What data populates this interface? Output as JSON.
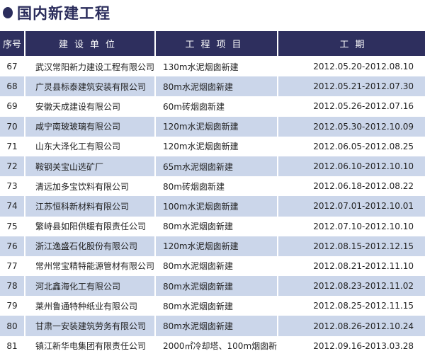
{
  "title": "国内新建工程",
  "colors": {
    "header_bg": "#2e2f5e",
    "row_alt_bg": "#cbd6ea",
    "title": "#2b2d5c"
  },
  "headers": [
    "序号",
    "建设单位",
    "工程项目",
    "工期"
  ],
  "rows": [
    {
      "no": "67",
      "unit": "武汉常阳新力建设工程有限公司",
      "project": "130m水泥烟囱新建",
      "period": "2012.05.20-2012.08.10"
    },
    {
      "no": "68",
      "unit": "广灵县标泰建筑安装有限公司",
      "project": "80m水泥烟囱新建",
      "period": "2012.05.21-2012.07.30"
    },
    {
      "no": "69",
      "unit": "安徽天成建设有限公司",
      "project": "60m砖烟囱新建",
      "period": "2012.05.26-2012.07.16"
    },
    {
      "no": "70",
      "unit": "咸宁南玻玻璃有限公司",
      "project": "120m水泥烟囱新建",
      "period": "2012.05.30-2012.10.09"
    },
    {
      "no": "71",
      "unit": "山东大泽化工有限公司",
      "project": "120m水泥烟囱新建",
      "period": "2012.06.05-2012.08.25"
    },
    {
      "no": "72",
      "unit": "鞍钢关宝山选矿厂",
      "project": "65m水泥烟囱新建",
      "period": "2012.06.10-2012.10.10"
    },
    {
      "no": "73",
      "unit": "清远加多宝饮料有限公司",
      "project": "80m砖烟囱新建",
      "period": "2012.06.18-2012.08.22"
    },
    {
      "no": "74",
      "unit": "江苏恒科新材料有限公司",
      "project": "100m水泥烟囱新建",
      "period": "2012.07.01-2012.10.01"
    },
    {
      "no": "75",
      "unit": "繁峙县如阳供暖有限责任公司",
      "project": "80m水泥烟囱新建",
      "period": "2012.07.10-2012.10.10"
    },
    {
      "no": "76",
      "unit": "浙江逸盛石化股份有限公司",
      "project": "120m水泥烟囱新建",
      "period": "2012.08.15-2012.12.15"
    },
    {
      "no": "77",
      "unit": "常州常宝精特能源管材有限公司",
      "project": "80m水泥烟囱新建",
      "period": "2012.08.21-2012.11.10"
    },
    {
      "no": "78",
      "unit": "河北鑫海化工有限公司",
      "project": "80m水泥烟囱新建",
      "period": "2012.08.23-2012.11.02"
    },
    {
      "no": "79",
      "unit": "莱州鲁通特种纸业有限公司",
      "project": "80m水泥烟囱新建",
      "period": "2012.08.25-2012.11.15"
    },
    {
      "no": "80",
      "unit": "甘肃一安装建筑劳务有限公司",
      "project": "80m水泥烟囱新建",
      "period": "2012.08.26-2012.10.24"
    },
    {
      "no": "81",
      "unit": "镇江新华电集团有限责任公司",
      "project": "2000㎡冷却塔、100m烟囱新建",
      "period": "2012.09.16-2013.03.28"
    }
  ]
}
